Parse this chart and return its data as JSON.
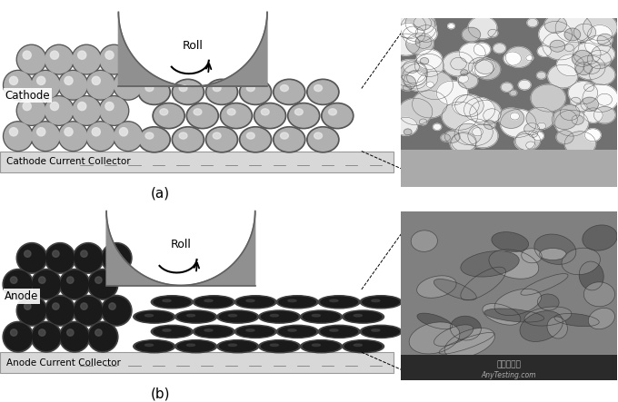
{
  "bg_color": "#ffffff",
  "cathode_sphere_color": "#b0b0b0",
  "anode_sphere_color": "#1a1a1a",
  "roll_color": "#909090",
  "roll_edge_color": "#606060",
  "collector_color": "#d8d8d8",
  "collector_edge_color": "#999999",
  "label_a": "(a)",
  "label_b": "(b)",
  "roll_label": "Roll",
  "cathode_label": "Cathode",
  "anode_label": "Anode",
  "cathode_collector_label": "Cathode Current Collector",
  "anode_collector_label": "Anode Current Collector",
  "watermark1": "嘉峰检测网",
  "watermark2": "AnyTesting.com",
  "fig_width": 6.8,
  "fig_height": 4.43,
  "dpi": 100
}
